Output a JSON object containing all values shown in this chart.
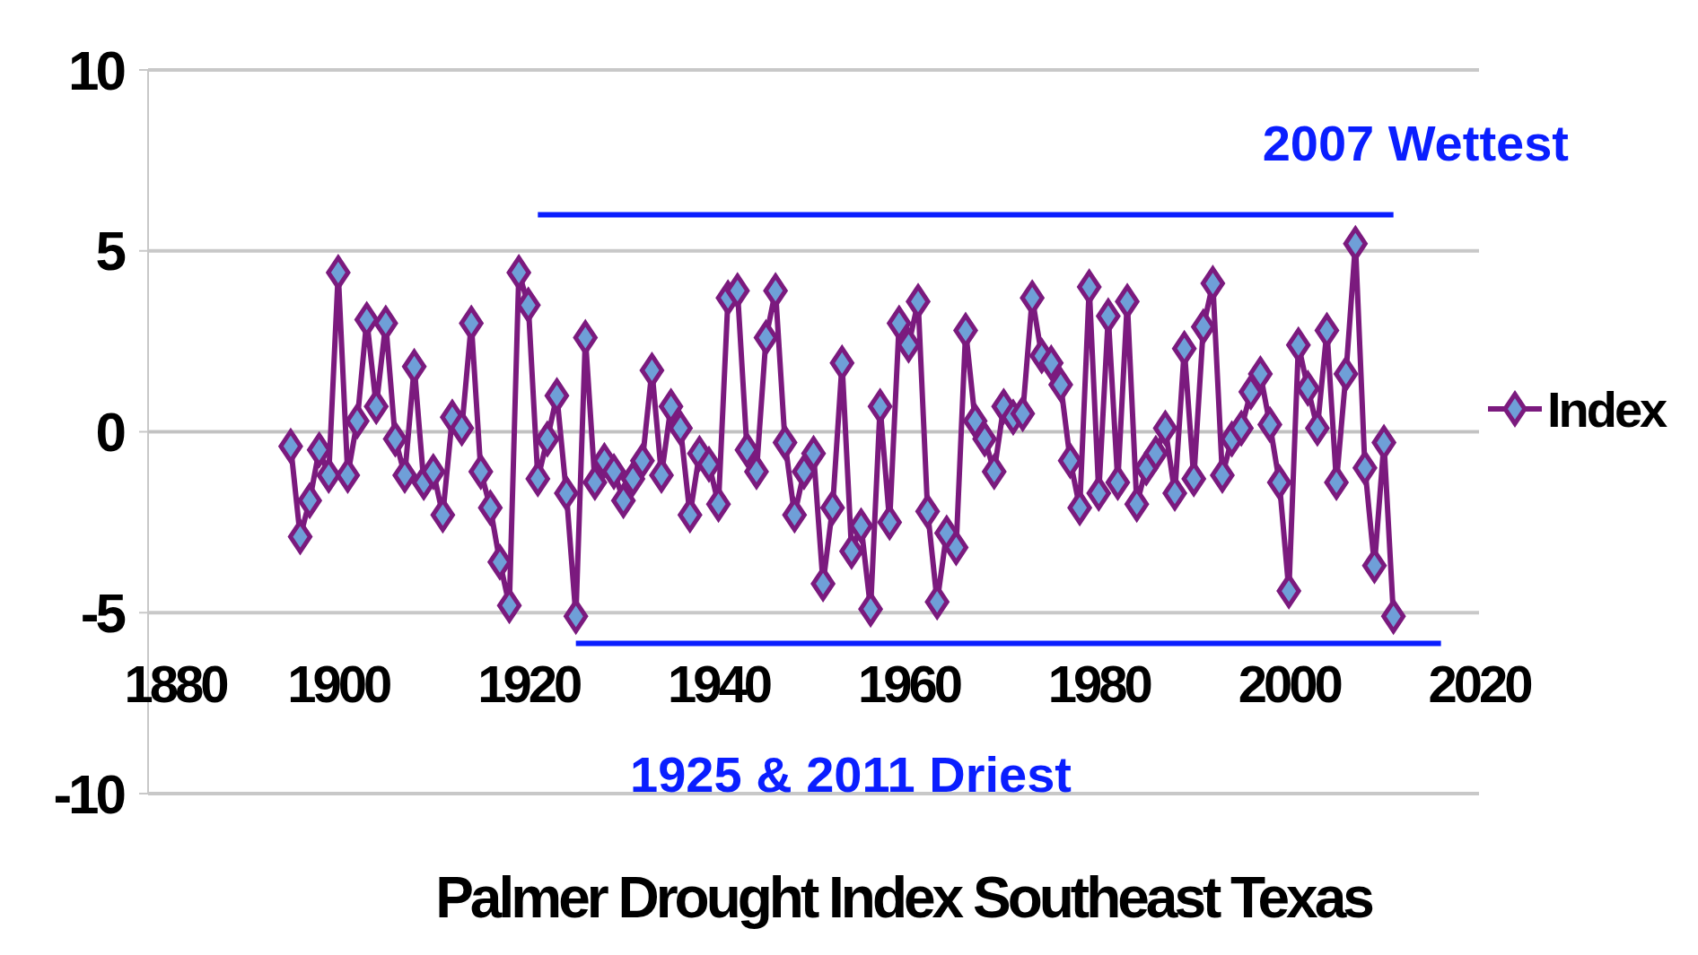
{
  "chart_data": {
    "type": "line",
    "title": "Palmer Drought Index Southeast Texas",
    "x": [
      1895,
      1896,
      1897,
      1898,
      1899,
      1900,
      1901,
      1902,
      1903,
      1904,
      1905,
      1906,
      1907,
      1908,
      1909,
      1910,
      1911,
      1912,
      1913,
      1914,
      1915,
      1916,
      1917,
      1918,
      1919,
      1920,
      1921,
      1922,
      1923,
      1924,
      1925,
      1926,
      1927,
      1928,
      1929,
      1930,
      1931,
      1932,
      1933,
      1934,
      1935,
      1936,
      1937,
      1938,
      1939,
      1940,
      1941,
      1942,
      1943,
      1944,
      1945,
      1946,
      1947,
      1948,
      1949,
      1950,
      1951,
      1952,
      1953,
      1954,
      1955,
      1956,
      1957,
      1958,
      1959,
      1960,
      1961,
      1962,
      1963,
      1964,
      1965,
      1966,
      1967,
      1968,
      1969,
      1970,
      1971,
      1972,
      1973,
      1974,
      1975,
      1976,
      1977,
      1978,
      1979,
      1980,
      1981,
      1982,
      1983,
      1984,
      1985,
      1986,
      1987,
      1988,
      1989,
      1990,
      1991,
      1992,
      1993,
      1994,
      1995,
      1996,
      1997,
      1998,
      1999,
      2000,
      2001,
      2002,
      2003,
      2004,
      2005,
      2006,
      2007,
      2008,
      2009,
      2010,
      2011
    ],
    "series": [
      {
        "name": "Index",
        "color": "#7b1a7e",
        "values": [
          -0.4,
          -2.9,
          -1.9,
          -0.5,
          -1.2,
          4.4,
          -1.2,
          0.3,
          3.1,
          0.7,
          3.0,
          -0.2,
          -1.2,
          1.8,
          -1.4,
          -1.1,
          -2.3,
          0.4,
          0.1,
          3.0,
          -1.1,
          -2.1,
          -3.6,
          -4.8,
          4.4,
          3.5,
          -1.3,
          -0.2,
          1.0,
          -1.7,
          -5.1,
          2.6,
          -1.4,
          -0.8,
          -1.1,
          -1.9,
          -1.3,
          -0.8,
          1.7,
          -1.2,
          0.7,
          0.1,
          -2.3,
          -0.6,
          -0.9,
          -2.0,
          3.7,
          3.9,
          -0.5,
          -1.1,
          2.6,
          3.9,
          -0.3,
          -2.3,
          -1.1,
          -0.6,
          -4.2,
          -2.1,
          1.9,
          -3.3,
          -2.6,
          -4.9,
          0.7,
          -2.5,
          3.0,
          2.4,
          3.6,
          -2.2,
          -4.7,
          -2.8,
          -3.2,
          2.8,
          0.3,
          -0.2,
          -1.1,
          0.7,
          0.4,
          0.5,
          3.7,
          2.1,
          1.9,
          1.3,
          -0.8,
          -2.1,
          4.0,
          -1.7,
          3.2,
          -1.4,
          3.6,
          -2.0,
          -1.0,
          -0.6,
          0.1,
          -1.7,
          2.3,
          -1.3,
          2.9,
          4.1,
          -1.2,
          -0.2,
          0.1,
          1.1,
          1.6,
          0.2,
          -1.4,
          -4.4,
          2.4,
          1.2,
          0.1,
          2.8,
          -1.4,
          1.6,
          5.2,
          -1.0,
          -3.7,
          -0.3,
          -5.1
        ]
      }
    ],
    "xlim": [
      1880,
      2020
    ],
    "xticks": [
      1880,
      1900,
      1920,
      1940,
      1960,
      1980,
      2000,
      2020
    ],
    "ylim": [
      -10,
      10
    ],
    "yticks": [
      -10,
      -5,
      0,
      5,
      10
    ],
    "grid": "y",
    "legend": "right",
    "marker": "diamond",
    "line_style": "solid",
    "ref_lines": [
      {
        "axis": "y",
        "value": 6.0,
        "label": "2007 Wettest",
        "color": "#0a1eff"
      },
      {
        "axis": "y",
        "value": -5.85,
        "label": "1925 & 2011 Driest",
        "color": "#0a1eff"
      }
    ]
  }
}
